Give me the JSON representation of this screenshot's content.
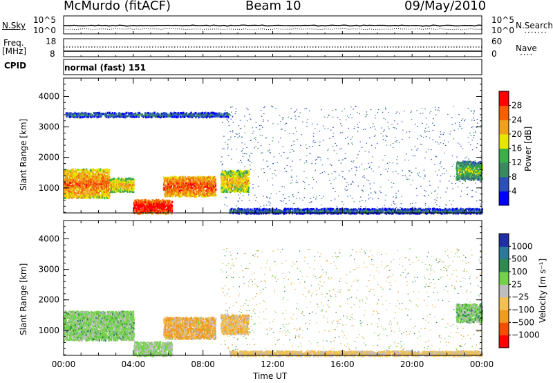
{
  "header": {
    "station": "McMurdo (fitACF)",
    "beam": "Beam 10",
    "date": "09/May/2010"
  },
  "noise_panel": {
    "left_label": "N.Sky",
    "right_label": "N.Search",
    "left_ticks": [
      "10^5",
      "10^0"
    ],
    "right_ticks": [
      "10^5",
      "10^0"
    ]
  },
  "freq_panel": {
    "left_label_1": "Freq.",
    "left_label_2": "[MHz]",
    "right_label": "Nave",
    "left_ticks": [
      "18",
      "8"
    ],
    "right_ticks": [
      "60",
      "0"
    ]
  },
  "cpid": {
    "label": "CPID",
    "value": "normal (fast) 151"
  },
  "x_axis": {
    "label": "Time UT",
    "ticks": [
      "00:00",
      "04:00",
      "08:00",
      "12:00",
      "16:00",
      "20:00",
      "00:00"
    ]
  },
  "colors": {
    "power": [
      "#0000ff",
      "#2c4fb8",
      "#3b8a5f",
      "#3aaf4c",
      "#e6e600",
      "#f0a020",
      "#f26000",
      "#ff0000"
    ],
    "velocity": [
      "#1f2fa6",
      "#2c7a9a",
      "#2f8a50",
      "#73d24a",
      "#bebebe",
      "#f4c050",
      "#f09a20",
      "#f05000",
      "#ff0000"
    ]
  },
  "chart_data": [
    {
      "type": "heatmap",
      "title": "",
      "ylabel": "Slant Range [km]",
      "xlabel": "",
      "ylim": [
        180,
        4600
      ],
      "xlim": [
        0,
        24
      ],
      "y_ticks": [
        "1000",
        "2000",
        "3000",
        "4000"
      ],
      "colorbar": {
        "label": "Power [dB]",
        "ticks": [
          "4",
          "8",
          "12",
          "16",
          "20",
          "24",
          "28"
        ],
        "range": [
          0,
          32
        ]
      },
      "regions": [
        {
          "x": [
            0,
            2.6
          ],
          "y": [
            700,
            1650
          ],
          "value": 22
        },
        {
          "x": [
            2.6,
            4.0
          ],
          "y": [
            900,
            1350
          ],
          "value": 18
        },
        {
          "x": [
            5.7,
            8.7
          ],
          "y": [
            750,
            1400
          ],
          "value": 24
        },
        {
          "x": [
            4.0,
            6.2
          ],
          "y": [
            190,
            650
          ],
          "value": 28
        },
        {
          "x": [
            9.0,
            10.6
          ],
          "y": [
            900,
            1600
          ],
          "value": 18
        },
        {
          "x": [
            22.5,
            24
          ],
          "y": [
            1300,
            1900
          ],
          "value": 12
        },
        {
          "x": [
            9.5,
            24
          ],
          "y": [
            190,
            350
          ],
          "value": 6
        },
        {
          "x": [
            0.1,
            9.5
          ],
          "y": [
            3350,
            3500
          ],
          "value": 6
        }
      ]
    },
    {
      "type": "heatmap",
      "title": "",
      "ylabel": "Slant Range [km]",
      "xlabel": "Time UT",
      "ylim": [
        180,
        4600
      ],
      "xlim": [
        0,
        24
      ],
      "y_ticks": [
        "1000",
        "2000",
        "3000",
        "4000"
      ],
      "colorbar": {
        "label": "Velocity [m s⁻¹]",
        "ticks": [
          "1000",
          "500",
          "100",
          "25",
          "−25",
          "−100",
          "−500",
          "−1000"
        ]
      },
      "regions": [
        {
          "x": [
            0,
            4.0
          ],
          "y": [
            700,
            1650
          ],
          "value": 50
        },
        {
          "x": [
            5.7,
            8.7
          ],
          "y": [
            750,
            1450
          ],
          "value": -120
        },
        {
          "x": [
            4.0,
            6.2
          ],
          "y": [
            190,
            650
          ],
          "value": 30
        },
        {
          "x": [
            9.0,
            10.6
          ],
          "y": [
            900,
            1550
          ],
          "value": -60
        },
        {
          "x": [
            22.5,
            24
          ],
          "y": [
            1300,
            1900
          ],
          "value": 60
        },
        {
          "x": [
            9.5,
            24
          ],
          "y": [
            190,
            350
          ],
          "value": -40
        }
      ]
    }
  ]
}
